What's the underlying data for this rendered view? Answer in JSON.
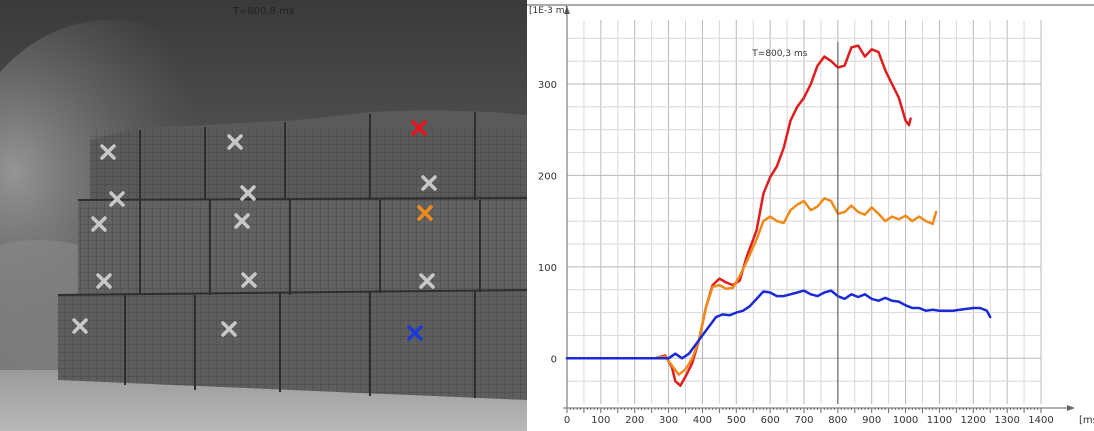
{
  "photo": {
    "frame_time": "T=800,8 ms",
    "markers": [
      {
        "color": "#c8c8c8",
        "type": "x"
      },
      {
        "color": "#c8c8c8",
        "type": "x"
      },
      {
        "color": "#e8141b",
        "type": "x"
      },
      {
        "color": "#c8c8c8",
        "type": "x"
      },
      {
        "color": "#c8c8c8",
        "type": "x"
      },
      {
        "color": "#c8c8c8",
        "type": "x"
      },
      {
        "color": "#c8c8c8",
        "type": "x"
      },
      {
        "color": "#c8c8c8",
        "type": "x"
      },
      {
        "color": "#f08a1a",
        "type": "x"
      },
      {
        "color": "#c8c8c8",
        "type": "x"
      },
      {
        "color": "#c8c8c8",
        "type": "x"
      },
      {
        "color": "#c8c8c8",
        "type": "x"
      },
      {
        "color": "#c8c8c8",
        "type": "x"
      },
      {
        "color": "#c8c8c8",
        "type": "x"
      },
      {
        "color": "#1a3ad6",
        "type": "x"
      }
    ]
  },
  "chart_data": {
    "type": "line",
    "ylabel": "[1E-3 m]",
    "xlabel": "[ms]",
    "cursor": {
      "x": 800,
      "label": "T=800,3 ms"
    },
    "xlim": [
      0,
      1400
    ],
    "ylim": [
      -50,
      370
    ],
    "x_ticks": [
      0,
      100,
      200,
      300,
      400,
      500,
      600,
      700,
      800,
      900,
      1000,
      1100,
      1200,
      1300,
      1400
    ],
    "y_ticks": [
      0,
      100,
      200,
      300
    ],
    "grid": true,
    "series": [
      {
        "color": "#e01c1c",
        "points": [
          [
            0,
            0
          ],
          [
            100,
            0
          ],
          [
            200,
            0
          ],
          [
            260,
            0
          ],
          [
            290,
            3
          ],
          [
            310,
            -10
          ],
          [
            320,
            -25
          ],
          [
            335,
            -30
          ],
          [
            350,
            -20
          ],
          [
            370,
            -5
          ],
          [
            390,
            20
          ],
          [
            410,
            55
          ],
          [
            430,
            80
          ],
          [
            450,
            87
          ],
          [
            470,
            83
          ],
          [
            490,
            80
          ],
          [
            510,
            85
          ],
          [
            530,
            110
          ],
          [
            560,
            140
          ],
          [
            580,
            180
          ],
          [
            600,
            198
          ],
          [
            620,
            210
          ],
          [
            640,
            230
          ],
          [
            660,
            260
          ],
          [
            680,
            275
          ],
          [
            700,
            285
          ],
          [
            720,
            300
          ],
          [
            740,
            320
          ],
          [
            760,
            330
          ],
          [
            780,
            325
          ],
          [
            800,
            318
          ],
          [
            820,
            320
          ],
          [
            840,
            340
          ],
          [
            860,
            342
          ],
          [
            880,
            330
          ],
          [
            900,
            338
          ],
          [
            920,
            335
          ],
          [
            940,
            315
          ],
          [
            960,
            300
          ],
          [
            980,
            285
          ],
          [
            1000,
            260
          ],
          [
            1010,
            255
          ],
          [
            1015,
            262
          ]
        ]
      },
      {
        "color": "#f08a1a",
        "points": [
          [
            0,
            0
          ],
          [
            100,
            0
          ],
          [
            200,
            0
          ],
          [
            260,
            0
          ],
          [
            290,
            2
          ],
          [
            310,
            -8
          ],
          [
            330,
            -18
          ],
          [
            350,
            -12
          ],
          [
            370,
            0
          ],
          [
            390,
            20
          ],
          [
            410,
            55
          ],
          [
            430,
            78
          ],
          [
            450,
            80
          ],
          [
            470,
            76
          ],
          [
            490,
            77
          ],
          [
            510,
            90
          ],
          [
            530,
            105
          ],
          [
            560,
            130
          ],
          [
            580,
            150
          ],
          [
            600,
            155
          ],
          [
            620,
            150
          ],
          [
            640,
            148
          ],
          [
            660,
            162
          ],
          [
            680,
            168
          ],
          [
            700,
            172
          ],
          [
            720,
            162
          ],
          [
            740,
            166
          ],
          [
            760,
            175
          ],
          [
            780,
            172
          ],
          [
            800,
            158
          ],
          [
            820,
            160
          ],
          [
            840,
            167
          ],
          [
            860,
            160
          ],
          [
            880,
            157
          ],
          [
            900,
            165
          ],
          [
            920,
            158
          ],
          [
            940,
            150
          ],
          [
            960,
            155
          ],
          [
            980,
            152
          ],
          [
            1000,
            156
          ],
          [
            1020,
            150
          ],
          [
            1040,
            155
          ],
          [
            1060,
            150
          ],
          [
            1080,
            147
          ],
          [
            1090,
            160
          ]
        ]
      },
      {
        "color": "#1a2ad6",
        "points": [
          [
            0,
            0
          ],
          [
            100,
            0
          ],
          [
            200,
            0
          ],
          [
            300,
            0
          ],
          [
            320,
            5
          ],
          [
            340,
            0
          ],
          [
            360,
            5
          ],
          [
            380,
            15
          ],
          [
            400,
            25
          ],
          [
            420,
            35
          ],
          [
            440,
            45
          ],
          [
            460,
            48
          ],
          [
            480,
            47
          ],
          [
            500,
            50
          ],
          [
            520,
            52
          ],
          [
            540,
            57
          ],
          [
            560,
            65
          ],
          [
            580,
            73
          ],
          [
            600,
            72
          ],
          [
            620,
            68
          ],
          [
            640,
            68
          ],
          [
            660,
            70
          ],
          [
            680,
            72
          ],
          [
            700,
            74
          ],
          [
            720,
            70
          ],
          [
            740,
            68
          ],
          [
            760,
            72
          ],
          [
            780,
            74
          ],
          [
            800,
            68
          ],
          [
            820,
            65
          ],
          [
            840,
            70
          ],
          [
            860,
            67
          ],
          [
            880,
            70
          ],
          [
            900,
            65
          ],
          [
            920,
            63
          ],
          [
            940,
            66
          ],
          [
            960,
            63
          ],
          [
            980,
            62
          ],
          [
            1000,
            58
          ],
          [
            1020,
            55
          ],
          [
            1040,
            55
          ],
          [
            1060,
            52
          ],
          [
            1080,
            53
          ],
          [
            1100,
            52
          ],
          [
            1120,
            52
          ],
          [
            1140,
            52
          ],
          [
            1160,
            53
          ],
          [
            1180,
            54
          ],
          [
            1200,
            55
          ],
          [
            1220,
            55
          ],
          [
            1240,
            52
          ],
          [
            1250,
            45
          ]
        ]
      }
    ]
  }
}
